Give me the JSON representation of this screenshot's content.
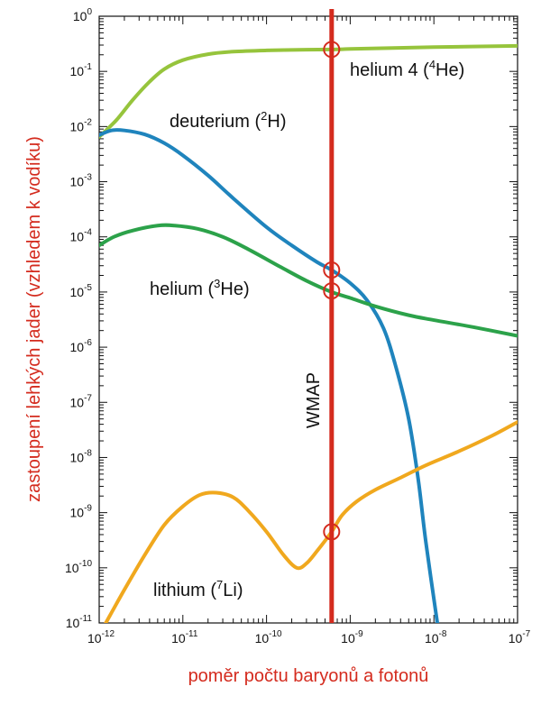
{
  "chart_data": {
    "type": "line",
    "xlabel": "poměr počtu baryonů a fotonů",
    "ylabel": "zastoupení lehkých jader (vzhledem k vodíku)",
    "axis_title_color": "#d42b1e",
    "xscale": "log",
    "yscale": "log",
    "xlim": [
      1e-12,
      1e-07
    ],
    "ylim": [
      1e-11,
      1
    ],
    "xticks": [
      {
        "base": "10",
        "exp": "-12"
      },
      {
        "base": "10",
        "exp": "-11"
      },
      {
        "base": "10",
        "exp": "-10"
      },
      {
        "base": "10",
        "exp": "-9"
      },
      {
        "base": "10",
        "exp": "-8"
      },
      {
        "base": "10",
        "exp": "-7"
      }
    ],
    "yticks": [
      {
        "base": "10",
        "exp": "0"
      },
      {
        "base": "10",
        "exp": "-1"
      },
      {
        "base": "10",
        "exp": "-2"
      },
      {
        "base": "10",
        "exp": "-3"
      },
      {
        "base": "10",
        "exp": "-4"
      },
      {
        "base": "10",
        "exp": "-5"
      },
      {
        "base": "10",
        "exp": "-6"
      },
      {
        "base": "10",
        "exp": "-7"
      },
      {
        "base": "10",
        "exp": "-8"
      },
      {
        "base": "10",
        "exp": "-9"
      },
      {
        "base": "10",
        "exp": "-10"
      },
      {
        "base": "10",
        "exp": "-11"
      }
    ],
    "grid": false,
    "series": [
      {
        "key": "he4",
        "label": {
          "pre": "helium 4 (",
          "sup": "4",
          "post": "He)"
        },
        "color": "#96c43c",
        "points": [
          [
            1e-12,
            0.0065
          ],
          [
            1.6e-12,
            0.013
          ],
          [
            2.5e-12,
            0.03
          ],
          [
            4e-12,
            0.065
          ],
          [
            6e-12,
            0.11
          ],
          [
            1e-11,
            0.16
          ],
          [
            2e-11,
            0.205
          ],
          [
            4e-11,
            0.228
          ],
          [
            1e-10,
            0.24
          ],
          [
            3e-10,
            0.247
          ],
          [
            6e-10,
            0.25
          ],
          [
            1e-09,
            0.255
          ],
          [
            1e-08,
            0.275
          ],
          [
            1e-07,
            0.29
          ]
        ]
      },
      {
        "key": "d",
        "label": {
          "pre": "deuterium (",
          "sup": "2",
          "post": "H)"
        },
        "color": "#1f84bd",
        "points": [
          [
            1e-12,
            0.007
          ],
          [
            1.4e-12,
            0.0085
          ],
          [
            2e-12,
            0.0085
          ],
          [
            3.5e-12,
            0.0072
          ],
          [
            6e-12,
            0.005
          ],
          [
            1e-11,
            0.003
          ],
          [
            2e-11,
            0.0013
          ],
          [
            4e-11,
            0.0005
          ],
          [
            1e-10,
            0.00015
          ],
          [
            2e-10,
            7e-05
          ],
          [
            4e-10,
            3.5e-05
          ],
          [
            6e-10,
            2.5e-05
          ],
          [
            1e-09,
            1.45e-05
          ],
          [
            1.6e-09,
            7e-06
          ],
          [
            2.5e-09,
            2.2e-06
          ],
          [
            3.5e-09,
            4.5e-07
          ],
          [
            5e-09,
            5e-08
          ],
          [
            6.5e-09,
            4e-09
          ],
          [
            8e-09,
            3e-10
          ],
          [
            1.1e-08,
            1e-11
          ]
        ]
      },
      {
        "key": "he3",
        "label": {
          "pre": "helium (",
          "sup": "3",
          "post": "He)"
        },
        "color": "#2ca24a",
        "points": [
          [
            1e-12,
            7e-05
          ],
          [
            1.5e-12,
            0.0001
          ],
          [
            2.5e-12,
            0.00013
          ],
          [
            5e-12,
            0.00016
          ],
          [
            8e-12,
            0.00016
          ],
          [
            1.5e-11,
            0.00014
          ],
          [
            3e-11,
            0.0001
          ],
          [
            6e-11,
            6e-05
          ],
          [
            1.5e-10,
            2.8e-05
          ],
          [
            3e-10,
            1.6e-05
          ],
          [
            6e-10,
            1e-05
          ],
          [
            1e-09,
            7.8e-06
          ],
          [
            2e-09,
            5.5e-06
          ],
          [
            5e-09,
            3.8e-06
          ],
          [
            1e-08,
            3.1e-06
          ],
          [
            3e-08,
            2.3e-06
          ],
          [
            1e-07,
            1.6e-06
          ]
        ]
      },
      {
        "key": "li7",
        "label": {
          "pre": "lithium (",
          "sup": "7",
          "post": "Li)"
        },
        "color": "#f0a81e",
        "points": [
          [
            1.2e-12,
            1e-11
          ],
          [
            2e-12,
            4e-11
          ],
          [
            3.5e-12,
            1.7e-10
          ],
          [
            6e-12,
            6e-10
          ],
          [
            1e-11,
            1.3e-09
          ],
          [
            1.6e-11,
            2.1e-09
          ],
          [
            2.5e-11,
            2.3e-09
          ],
          [
            4e-11,
            1.9e-09
          ],
          [
            6e-11,
            1.1e-09
          ],
          [
            1e-10,
            4.5e-10
          ],
          [
            1.6e-10,
            1.7e-10
          ],
          [
            2.3e-10,
            1e-10
          ],
          [
            3e-10,
            1.2e-10
          ],
          [
            4e-10,
            2e-10
          ],
          [
            6e-10,
            4.5e-10
          ],
          [
            8e-10,
            9e-10
          ],
          [
            1.2e-09,
            1.6e-09
          ],
          [
            2e-09,
            2.6e-09
          ],
          [
            4e-09,
            4.3e-09
          ],
          [
            8e-09,
            7.2e-09
          ],
          [
            2e-08,
            1.3e-08
          ],
          [
            5e-08,
            2.5e-08
          ],
          [
            1e-07,
            4.4e-08
          ]
        ]
      }
    ],
    "marker_line": {
      "label": "WMAP",
      "x": 6e-10,
      "color": "#d42b1e",
      "circles": [
        0.25,
        2.5e-05,
        1.05e-05,
        4.5e-10
      ]
    }
  }
}
